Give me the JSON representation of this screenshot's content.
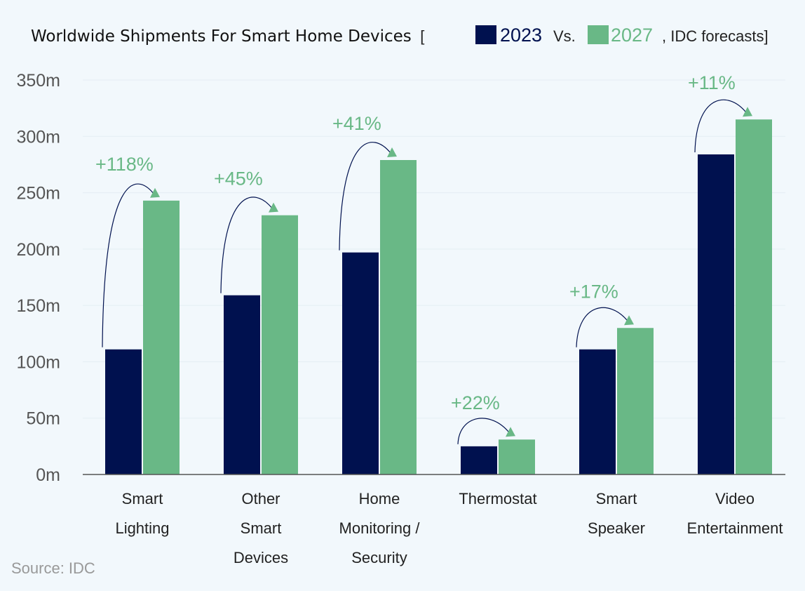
{
  "colors": {
    "series_2023": "#00114f",
    "series_2027": "#69b886",
    "axis": "#555555",
    "grid": "#e4edf3",
    "background": "#f2f8fc"
  },
  "header": {
    "title": "Worldwide Shipments For Smart Home Devices",
    "bracket_open": "[",
    "year_a": "2023",
    "vs": "Vs.",
    "year_b": "2027",
    "suffix": ", IDC forecasts]"
  },
  "source": "Source: IDC",
  "chart_data": {
    "type": "bar",
    "title": "Worldwide Shipments For Smart Home Devices [ 2023 Vs. 2027, IDC forecasts]",
    "categories": [
      [
        "Smart",
        "Lighting"
      ],
      [
        "Other",
        "Smart",
        "Devices"
      ],
      [
        "Home",
        "Monitoring /",
        "Security"
      ],
      [
        "Thermostat"
      ],
      [
        "Smart",
        "Speaker"
      ],
      [
        "Video",
        "Entertainment"
      ]
    ],
    "series": [
      {
        "name": "2023",
        "values": [
          111,
          159,
          197,
          25,
          111,
          284
        ]
      },
      {
        "name": "2027",
        "values": [
          243,
          230,
          279,
          31,
          130,
          315
        ]
      }
    ],
    "growth_labels": [
      "+118%",
      "+45%",
      "+41%",
      "+22%",
      "+17%",
      "+11%"
    ],
    "ylim": [
      0,
      350
    ],
    "yticks": [
      0,
      50,
      100,
      150,
      200,
      250,
      300,
      350
    ],
    "ytick_labels": [
      "0m",
      "50m",
      "100m",
      "150m",
      "200m",
      "250m",
      "300m",
      "350m"
    ],
    "xlabel": "",
    "ylabel": "",
    "grid": true,
    "legend": "in title"
  }
}
